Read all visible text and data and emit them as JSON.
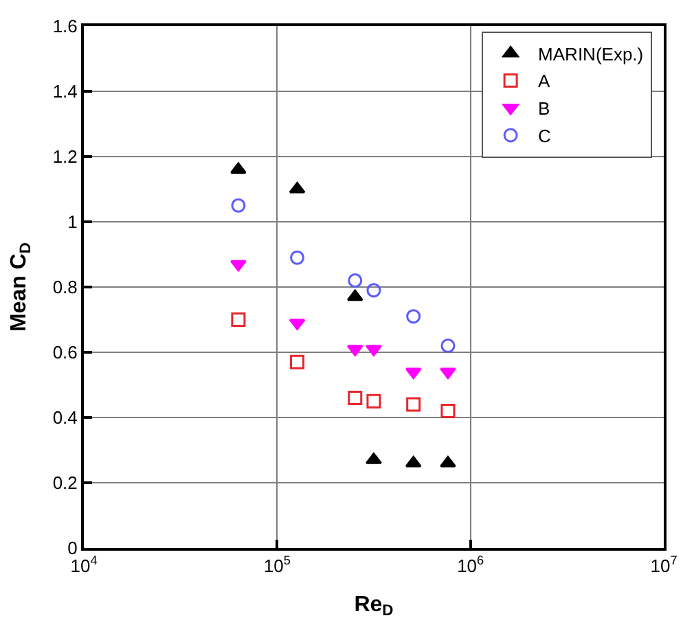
{
  "chart_data": {
    "type": "scatter",
    "xlabel": "Re$_{D}$",
    "ylabel": "Mean C$_{D}$",
    "log": "x",
    "x": [
      63000,
      127000,
      253000,
      316000,
      507000,
      765000
    ],
    "series": [
      {
        "name": "MARIN(Exp.)",
        "color": "#000000",
        "marker": "triangle",
        "values": [
          1.16,
          1.1,
          0.77,
          0.27,
          0.26,
          0.26
        ]
      },
      {
        "name": "A",
        "color": "#e8262b",
        "marker": "square-open",
        "values": [
          0.7,
          0.57,
          0.46,
          0.45,
          0.44,
          0.42
        ]
      },
      {
        "name": "B",
        "color": "#ff00ff",
        "marker": "triangle-down",
        "values": [
          0.87,
          0.69,
          0.61,
          0.61,
          0.54,
          0.54
        ]
      },
      {
        "name": "C",
        "color": "#5b5bff",
        "marker": "circle-open",
        "values": [
          1.05,
          0.89,
          0.82,
          0.79,
          0.71,
          0.62
        ]
      }
    ],
    "xlim": [
      10000,
      10000000
    ],
    "xticks": [
      {
        "value": 10000,
        "label": "10$^{4}$"
      },
      {
        "value": 100000,
        "label": "10$^{5}$"
      },
      {
        "value": 1000000,
        "label": "10$^{6}$"
      },
      {
        "value": 10000000,
        "label": "10$^{7}$"
      }
    ],
    "ylim": [
      0,
      1.6
    ],
    "yticks": [
      0,
      0.2,
      0.4,
      0.6,
      0.8,
      1,
      1.2,
      1.4,
      1.6
    ],
    "grid": true,
    "legend": "top right"
  }
}
